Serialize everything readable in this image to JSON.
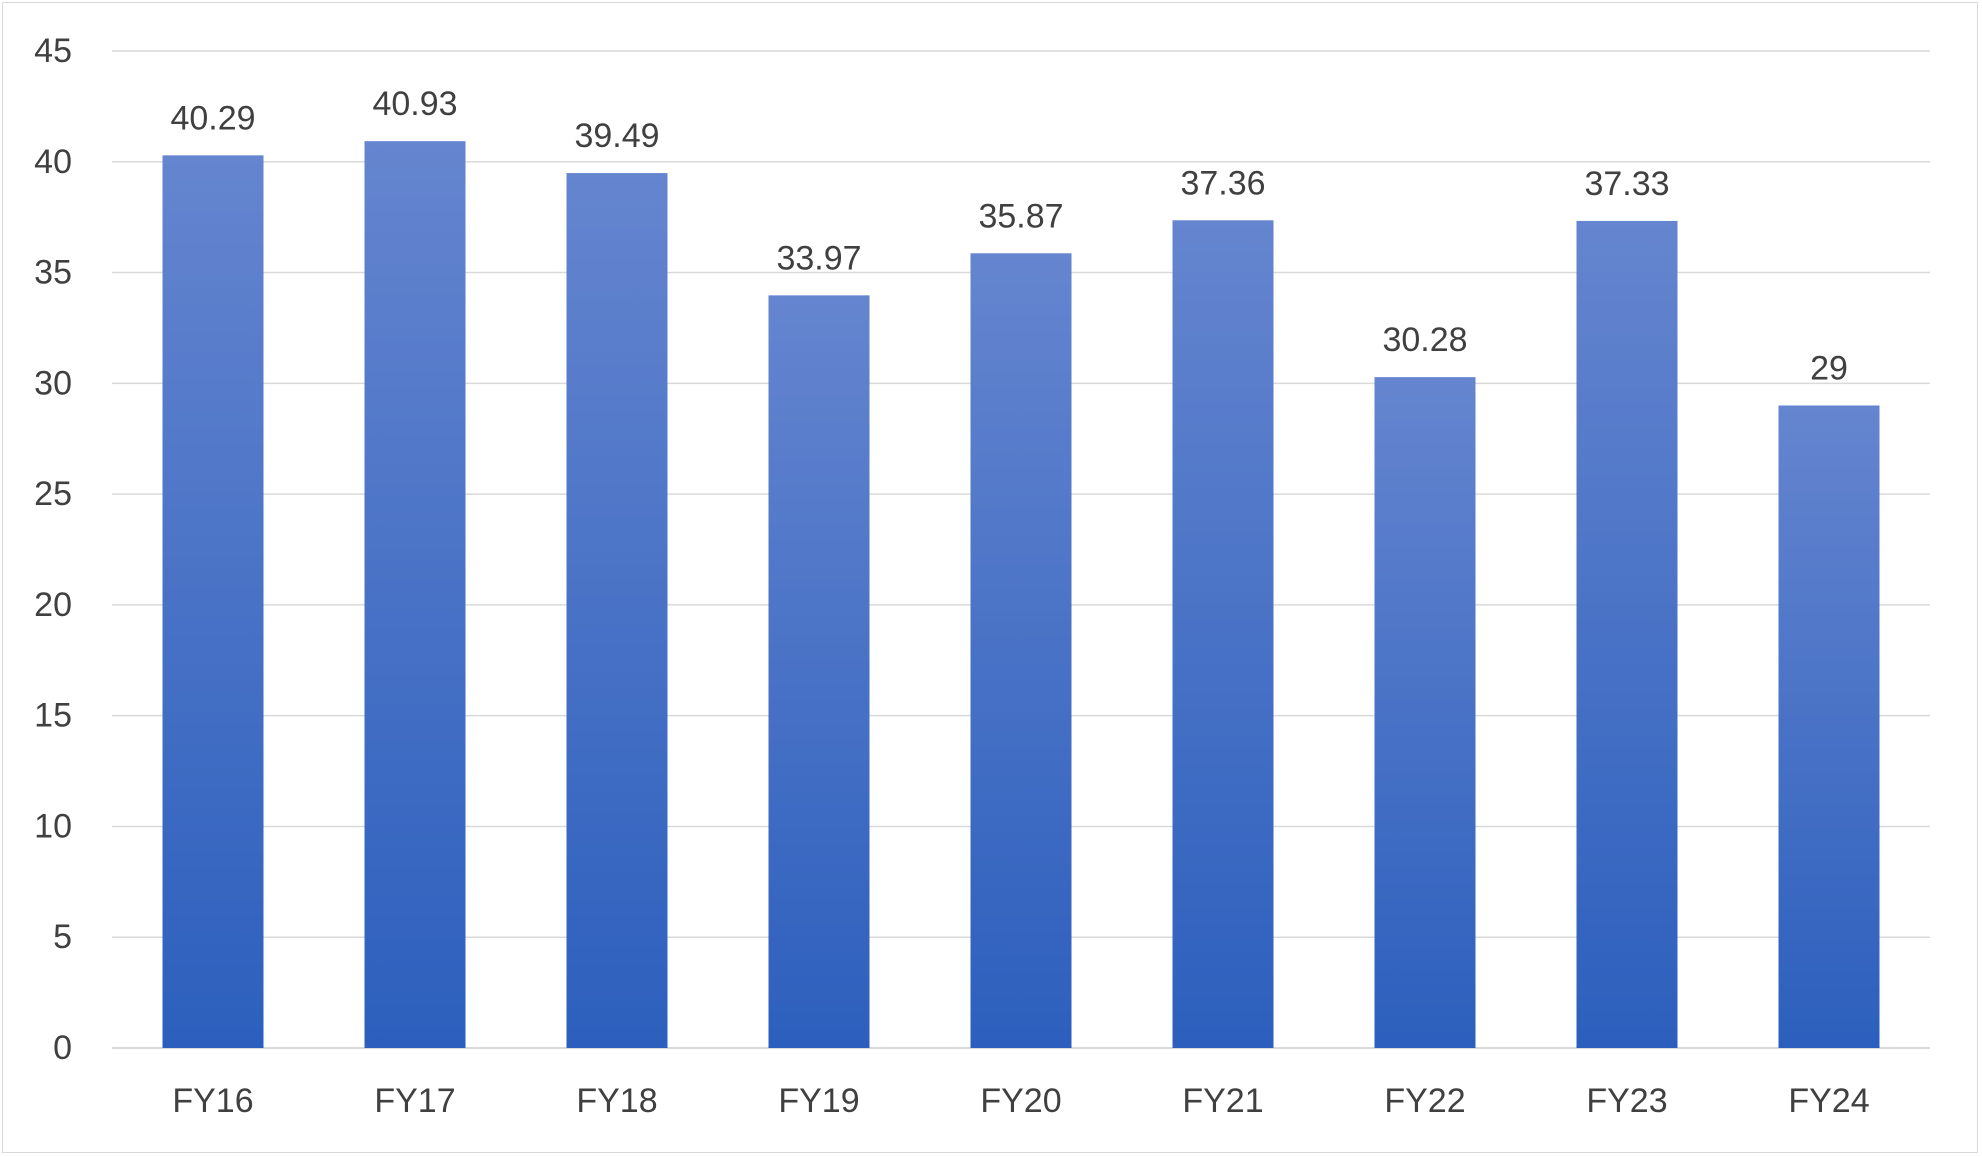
{
  "chart_data": {
    "type": "bar",
    "categories": [
      "FY16",
      "FY17",
      "FY18",
      "FY19",
      "FY20",
      "FY21",
      "FY22",
      "FY23",
      "FY24"
    ],
    "values": [
      40.29,
      40.93,
      39.49,
      33.97,
      35.87,
      37.36,
      30.28,
      37.33,
      29
    ],
    "data_labels": [
      "40.29",
      "40.93",
      "39.49",
      "33.97",
      "35.87",
      "37.36",
      "30.28",
      "37.33",
      "29"
    ],
    "title": "",
    "xlabel": "",
    "ylabel": "",
    "ylim": [
      0,
      45
    ],
    "yticks": [
      "0",
      "5",
      "10",
      "15",
      "20",
      "25",
      "30",
      "35",
      "40",
      "45"
    ],
    "grid": true,
    "legend": "none",
    "colors": {
      "bar_top": "#6585cf",
      "bar_bottom": "#2c5fbd",
      "grid": "#d9d9d9",
      "text": "#404040"
    }
  }
}
